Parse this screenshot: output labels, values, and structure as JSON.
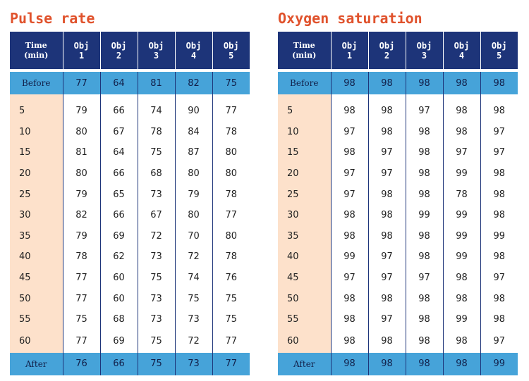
{
  "chart_data": [
    {
      "type": "table",
      "title": "Pulse rate",
      "columns": [
        "Time (min)",
        "Obj 1",
        "Obj 2",
        "Obj 3",
        "Obj 4",
        "Obj 5"
      ],
      "header": [
        [
          "Time",
          "(min)"
        ],
        [
          "Obj",
          "1"
        ],
        [
          "Obj",
          "2"
        ],
        [
          "Obj",
          "3"
        ],
        [
          "Obj",
          "4"
        ],
        [
          "Obj",
          "5"
        ]
      ],
      "before": [
        "Before",
        "77",
        "64",
        "81",
        "82",
        "75"
      ],
      "rows": [
        [
          "5",
          "79",
          "66",
          "74",
          "90",
          "77"
        ],
        [
          "10",
          "80",
          "67",
          "78",
          "84",
          "78"
        ],
        [
          "15",
          "81",
          "64",
          "75",
          "87",
          "80"
        ],
        [
          "20",
          "80",
          "66",
          "68",
          "80",
          "80"
        ],
        [
          "25",
          "79",
          "65",
          "73",
          "79",
          "78"
        ],
        [
          "30",
          "82",
          "66",
          "67",
          "80",
          "77"
        ],
        [
          "35",
          "79",
          "69",
          "72",
          "70",
          "80"
        ],
        [
          "40",
          "78",
          "62",
          "73",
          "72",
          "78"
        ],
        [
          "45",
          "77",
          "60",
          "75",
          "74",
          "76"
        ],
        [
          "50",
          "77",
          "60",
          "73",
          "75",
          "75"
        ],
        [
          "55",
          "75",
          "68",
          "73",
          "73",
          "75"
        ],
        [
          "60",
          "77",
          "69",
          "75",
          "72",
          "77"
        ]
      ],
      "after": [
        "After",
        "76",
        "66",
        "75",
        "73",
        "77"
      ]
    },
    {
      "type": "table",
      "title": "Oxygen saturation",
      "columns": [
        "Time (min)",
        "Obj 1",
        "Obj 2",
        "Obj 3",
        "Obj 4",
        "Obj 5"
      ],
      "header": [
        [
          "Time",
          "(min)"
        ],
        [
          "Obj",
          "1"
        ],
        [
          "Obj",
          "2"
        ],
        [
          "Obj",
          "3"
        ],
        [
          "Obj",
          "4"
        ],
        [
          "Obj",
          "5"
        ]
      ],
      "before": [
        "Before",
        "98",
        "98",
        "98",
        "98",
        "98"
      ],
      "rows": [
        [
          "5",
          "98",
          "98",
          "97",
          "98",
          "98"
        ],
        [
          "10",
          "97",
          "98",
          "98",
          "98",
          "97"
        ],
        [
          "15",
          "98",
          "97",
          "98",
          "97",
          "97"
        ],
        [
          "20",
          "97",
          "97",
          "98",
          "99",
          "98"
        ],
        [
          "25",
          "97",
          "98",
          "98",
          "78",
          "98"
        ],
        [
          "30",
          "98",
          "98",
          "99",
          "99",
          "98"
        ],
        [
          "35",
          "98",
          "98",
          "98",
          "99",
          "99"
        ],
        [
          "40",
          "99",
          "97",
          "98",
          "99",
          "98"
        ],
        [
          "45",
          "97",
          "97",
          "97",
          "98",
          "97"
        ],
        [
          "50",
          "98",
          "98",
          "98",
          "98",
          "98"
        ],
        [
          "55",
          "98",
          "97",
          "98",
          "99",
          "98"
        ],
        [
          "60",
          "98",
          "98",
          "98",
          "98",
          "97"
        ]
      ],
      "after": [
        "After",
        "98",
        "98",
        "98",
        "98",
        "99"
      ]
    }
  ],
  "colors": {
    "title": "#e0522c",
    "header_bg": "#1d3479",
    "band_bg": "#46a3d9",
    "time_col_bg": "#fde1cb"
  }
}
